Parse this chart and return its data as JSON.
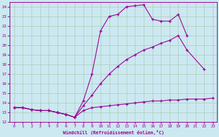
{
  "bg_color": "#cce8f0",
  "line_color": "#990099",
  "grid_color": "#aaccbb",
  "xlabel": "Windchill (Refroidissement éolien,°C)",
  "xlim": [
    -0.5,
    23.5
  ],
  "ylim": [
    12,
    24.5
  ],
  "yticks": [
    12,
    13,
    14,
    15,
    16,
    17,
    18,
    19,
    20,
    21,
    22,
    23,
    24
  ],
  "xticks": [
    0,
    1,
    2,
    3,
    4,
    5,
    6,
    7,
    8,
    9,
    10,
    11,
    12,
    13,
    14,
    15,
    16,
    17,
    18,
    19,
    20,
    21,
    22,
    23
  ],
  "series": [
    {
      "x": [
        0,
        1,
        2,
        3,
        4,
        5,
        6,
        7,
        8,
        9,
        10,
        11,
        12,
        13,
        14,
        15,
        16,
        17,
        18,
        19,
        20
      ],
      "y": [
        13.5,
        13.5,
        13.3,
        13.2,
        13.2,
        13.0,
        12.8,
        12.5,
        14.2,
        17.0,
        21.5,
        23.0,
        23.2,
        24.0,
        24.1,
        24.2,
        22.7,
        22.5,
        22.5,
        23.2,
        21.0
      ]
    },
    {
      "x": [
        0,
        1,
        2,
        3,
        4,
        5,
        6,
        7,
        8,
        9,
        10,
        11,
        12,
        13,
        14,
        15,
        16,
        17,
        18,
        19,
        20,
        22
      ],
      "y": [
        13.5,
        13.5,
        13.3,
        13.2,
        13.2,
        13.0,
        12.8,
        12.5,
        13.7,
        14.8,
        16.0,
        17.0,
        17.8,
        18.5,
        19.0,
        19.5,
        19.8,
        20.2,
        20.5,
        21.0,
        19.5,
        17.5
      ]
    },
    {
      "x": [
        0,
        1,
        2,
        3,
        4,
        5,
        6,
        7,
        8,
        9,
        10,
        11,
        12,
        13,
        14,
        15,
        16,
        17,
        18,
        19,
        20,
        21,
        22,
        23
      ],
      "y": [
        13.5,
        13.5,
        13.3,
        13.2,
        13.2,
        13.0,
        12.8,
        12.5,
        13.2,
        13.5,
        13.6,
        13.7,
        13.8,
        13.9,
        14.0,
        14.1,
        14.2,
        14.2,
        14.3,
        14.3,
        14.4,
        14.4,
        14.4,
        14.5
      ]
    }
  ]
}
